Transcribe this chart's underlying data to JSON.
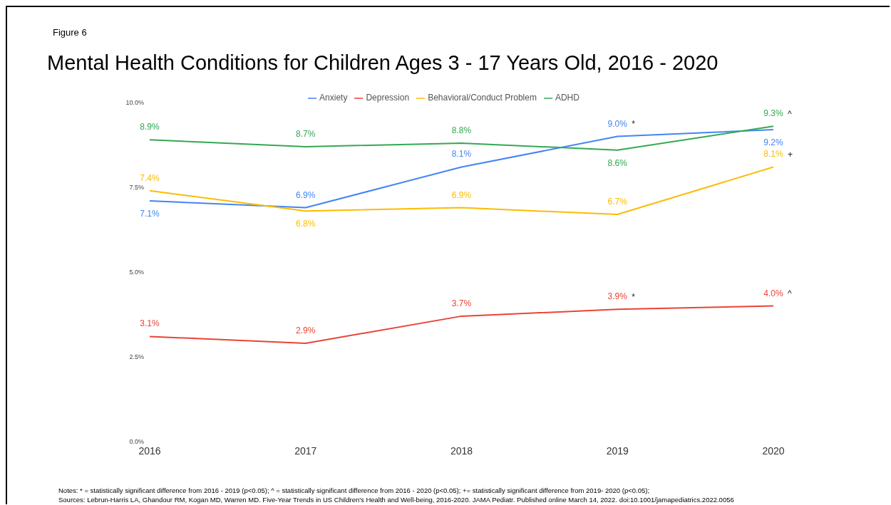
{
  "chart_data": {
    "type": "line",
    "title": "Mental Health Conditions for Children Ages 3 - 17 Years Old, 2016 - 2020",
    "categories": [
      "2016",
      "2017",
      "2018",
      "2019",
      "2020"
    ],
    "series": [
      {
        "name": "Anxiety",
        "color": "#4285f4",
        "values": [
          7.1,
          6.9,
          8.1,
          9.0,
          9.2
        ],
        "value_labels": [
          "7.1%",
          "6.9%",
          "8.1%",
          "9.0%",
          "9.2%"
        ]
      },
      {
        "name": "Depression",
        "color": "#ea4335",
        "values": [
          3.1,
          2.9,
          3.7,
          3.9,
          4.0
        ],
        "value_labels": [
          "3.1%",
          "2.9%",
          "3.7%",
          "3.9%",
          "4.0%"
        ]
      },
      {
        "name": "Behavioral/Conduct Problem",
        "color": "#fbbc04",
        "values": [
          7.4,
          6.8,
          6.9,
          6.7,
          8.1
        ],
        "value_labels": [
          "7.4%",
          "6.8%",
          "6.9%",
          "6.7%",
          "8.1%"
        ]
      },
      {
        "name": "ADHD",
        "color": "#34a853",
        "values": [
          8.9,
          8.7,
          8.8,
          8.6,
          9.3
        ],
        "value_labels": [
          "8.9%",
          "8.7%",
          "8.8%",
          "8.6%",
          "9.3%"
        ]
      }
    ],
    "ylim": [
      0,
      10
    ],
    "yticks": [
      {
        "value": 0,
        "label": "0.0%"
      },
      {
        "value": 2.5,
        "label": "2.5%"
      },
      {
        "value": 5,
        "label": "5.0%"
      },
      {
        "value": 7.5,
        "label": "7.5%"
      },
      {
        "value": 10,
        "label": "10.0%"
      }
    ],
    "grid": false,
    "legend": "top",
    "marker": "none",
    "line_style": "solid",
    "annotations": [
      "Figure 6",
      {
        "text": "*",
        "x": "2019",
        "y": 9.0
      },
      {
        "text": "^",
        "x": "2020",
        "y": 9.3
      },
      {
        "text": "+",
        "x": "2020",
        "y": 8.1
      },
      {
        "text": "*",
        "x": "2019",
        "y": 3.9
      },
      {
        "text": "^",
        "x": "2020",
        "y": 4.0
      },
      "Notes: * = statistically significant difference from 2016 - 2019 (p<0.05); ^ = statistically significant difference from 2016 - 2020 (p<0.05); += statistically significant difference from 2019- 2020 (p<0.05);",
      "Sources: Lebrun-Harris LA, Ghandour RM, Kogan MD, Warren MD. Five-Year Trends in US Children's Health and Well-being, 2016-2020. JAMA Pediatr. Published online March 14, 2022. doi:10.1001/jamapediatrics.2022.0056"
    ]
  }
}
